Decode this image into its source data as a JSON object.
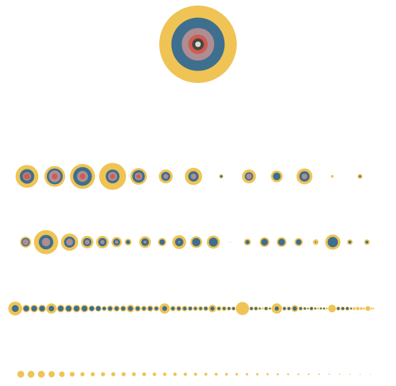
{
  "chart_data": {
    "type": "nested-circles",
    "title": "",
    "palette": {
      "level1": "#EFC455",
      "level2": "#3E6F8E",
      "level3": "#AE8D93",
      "level4": "#CF5C50",
      "level5": "#4B453F",
      "level6": "#D6DECE"
    },
    "levels": [
      {
        "name": "level-1",
        "nodes": [
          {
            "values": [
              56.0,
              38.5,
              23.5,
              14.0,
              8.5,
              4.0
            ]
          }
        ]
      },
      {
        "name": "level-2",
        "nodes": [
          {
            "values": [
              16.5,
              10.5,
              6.0,
              4.5
            ]
          },
          {
            "values": [
              15.0,
              11.5,
              8.5,
              4.0
            ]
          },
          {
            "values": [
              18.0,
              13.5,
              8.0,
              4.0
            ]
          },
          {
            "values": [
              19.5,
              10.0,
              6.5,
              3.5
            ]
          },
          {
            "values": [
              12.0,
              9.0,
              5.5,
              3.0
            ]
          },
          {
            "values": [
              10.0,
              6.5,
              3.5
            ]
          },
          {
            "values": [
              12.5,
              7.5,
              4.0
            ]
          },
          {
            "values": [
              3.0,
              1.8
            ]
          },
          {
            "values": [
              10.0,
              6.0,
              4.0
            ]
          },
          {
            "values": [
              8.5,
              5.5
            ]
          },
          {
            "values": [
              11.5,
              7.5,
              4.0
            ]
          },
          {
            "values": [
              2.0
            ]
          },
          {
            "values": [
              3.5,
              1.5
            ]
          }
        ]
      },
      {
        "name": "level-3",
        "nodes": [
          {
            "values": [
              8.0,
              6.0,
              4.5
            ]
          },
          {
            "values": [
              17.5,
              10.5,
              6.0
            ]
          },
          {
            "values": [
              12.5,
              8.0,
              5.0
            ]
          },
          {
            "values": [
              9.0,
              6.0,
              3.5
            ]
          },
          {
            "values": [
              9.0,
              6.0,
              3.0
            ]
          },
          {
            "values": [
              7.5,
              5.0,
              2.5
            ]
          },
          {
            "values": [
              5.0,
              3.0
            ]
          },
          {
            "values": [
              8.5,
              5.5,
              2.0
            ]
          },
          {
            "values": [
              6.0,
              4.0
            ]
          },
          {
            "values": [
              10.0,
              6.0,
              1.5
            ]
          },
          {
            "values": [
              8.5,
              6.0
            ]
          },
          {
            "values": [
              9.5,
              6.5
            ]
          },
          {
            "values": [
              0.6
            ]
          },
          {
            "values": [
              5.0,
              3.0
            ]
          },
          {
            "values": [
              7.0,
              5.0
            ]
          },
          {
            "values": [
              7.0,
              5.0
            ]
          },
          {
            "values": [
              6.0,
              4.0
            ]
          },
          {
            "values": [
              4.0,
              1.0
            ]
          },
          {
            "values": [
              11.0,
              7.5
            ]
          },
          {
            "values": [
              4.0,
              2.0
            ]
          },
          {
            "values": [
              4.0,
              2.0
            ]
          }
        ]
      },
      {
        "name": "level-4",
        "nodes": [
          {
            "values": [
              10.0,
              5.0
            ]
          },
          {
            "values": [
              5.5,
              4.0
            ]
          },
          {
            "values": [
              5.5,
              4.0
            ]
          },
          {
            "values": [
              5.5,
              4.0
            ]
          },
          {
            "values": [
              7.5,
              4.0
            ]
          },
          {
            "values": [
              5.5,
              4.0
            ]
          },
          {
            "values": [
              5.5,
              4.0
            ]
          },
          {
            "values": [
              5.5,
              4.0
            ]
          },
          {
            "values": [
              5.5,
              4.0
            ]
          },
          {
            "values": [
              4.5,
              3.5
            ]
          },
          {
            "values": [
              4.5,
              3.5
            ]
          },
          {
            "values": [
              3.5,
              2.5
            ]
          },
          {
            "values": [
              4.5,
              3.0
            ]
          },
          {
            "values": [
              4.5,
              3.0
            ]
          },
          {
            "values": [
              4.5,
              3.0
            ]
          },
          {
            "values": [
              5.5,
              3.5
            ]
          },
          {
            "values": [
              4.5,
              3.0
            ]
          },
          {
            "values": [
              4.0,
              2.5
            ]
          },
          {
            "values": [
              4.5,
              3.0
            ]
          },
          {
            "values": [
              4.0,
              2.5
            ]
          },
          {
            "values": [
              7.5,
              3.5
            ]
          },
          {
            "values": [
              4.0,
              2.5
            ]
          },
          {
            "values": [
              4.0,
              2.5
            ]
          },
          {
            "values": [
              4.0,
              2.5
            ]
          },
          {
            "values": [
              3.5,
              2.5
            ]
          },
          {
            "values": [
              3.5,
              2.0
            ]
          },
          {
            "values": [
              3.5,
              2.0
            ]
          },
          {
            "values": [
              3.5,
              2.5
            ]
          },
          {
            "values": [
              5.5,
              3.0
            ]
          },
          {
            "values": [
              3.5,
              2.0
            ]
          },
          {
            "values": [
              3.5,
              2.0
            ]
          },
          {
            "values": [
              3.0,
              2.0
            ]
          },
          {
            "values": [
              3.0,
              2.0
            ]
          },
          {
            "values": [
              9.5
            ]
          },
          {
            "values": [
              3.0,
              2.0
            ]
          },
          {
            "values": [
              3.0,
              2.0
            ]
          },
          {
            "values": [
              2.0,
              1.2
            ]
          },
          {
            "values": [
              1.5
            ]
          },
          {
            "values": [
              3.0,
              2.0
            ]
          },
          {
            "values": [
              2.0,
              1.2
            ]
          },
          {
            "values": [
              7.5,
              3.0
            ]
          },
          {
            "values": [
              3.0,
              2.0
            ]
          },
          {
            "values": [
              3.0,
              2.0
            ]
          },
          {
            "values": [
              5.0,
              3.0
            ]
          },
          {
            "values": [
              3.0,
              2.0
            ]
          },
          {
            "values": [
              2.5,
              1.5
            ]
          },
          {
            "values": [
              1.5,
              1.0
            ]
          },
          {
            "values": [
              3.0,
              2.0
            ]
          },
          {
            "values": [
              2.0,
              1.2
            ]
          },
          {
            "values": [
              1.5
            ]
          },
          {
            "values": [
              2.0,
              1.2
            ]
          },
          {
            "values": [
              2.0,
              1.2
            ]
          },
          {
            "values": [
              1.5
            ]
          },
          {
            "values": [
              5.5
            ]
          },
          {
            "values": [
              3.0,
              2.0
            ]
          },
          {
            "values": [
              3.0,
              2.0
            ]
          },
          {
            "values": [
              3.0,
              2.0
            ]
          },
          {
            "values": [
              2.0,
              1.2
            ]
          },
          {
            "values": [
              2.0
            ]
          },
          {
            "values": [
              2.5
            ]
          },
          {
            "values": [
              2.0
            ]
          },
          {
            "values": [
              1.5
            ]
          },
          {
            "values": [
              3.5
            ]
          },
          {
            "values": [
              1.5
            ]
          },
          {
            "values": [
              1.0
            ]
          }
        ]
      },
      {
        "name": "level-5",
        "nodes": [
          {
            "values": [
              5.0
            ]
          },
          {
            "values": [
              5.0
            ]
          },
          {
            "values": [
              5.0
            ]
          },
          {
            "values": [
              4.5
            ]
          },
          {
            "values": [
              4.0
            ]
          },
          {
            "values": [
              3.5
            ]
          },
          {
            "values": [
              3.0
            ]
          },
          {
            "values": [
              3.0
            ]
          },
          {
            "values": [
              3.0
            ]
          },
          {
            "values": [
              3.0
            ]
          },
          {
            "values": [
              3.0
            ]
          },
          {
            "values": [
              2.8
            ]
          },
          {
            "values": [
              2.8
            ]
          },
          {
            "values": [
              2.6
            ]
          },
          {
            "values": [
              2.5
            ]
          },
          {
            "values": [
              2.5
            ]
          },
          {
            "values": [
              2.4
            ]
          },
          {
            "values": [
              2.3
            ]
          },
          {
            "values": [
              2.2
            ]
          },
          {
            "values": [
              2.1
            ]
          },
          {
            "values": [
              2.0
            ]
          },
          {
            "values": [
              1.9
            ]
          },
          {
            "values": [
              1.8
            ]
          },
          {
            "values": [
              1.7
            ]
          },
          {
            "values": [
              1.6
            ]
          },
          {
            "values": [
              1.5
            ]
          },
          {
            "values": [
              1.4
            ]
          },
          {
            "values": [
              1.3
            ]
          },
          {
            "values": [
              1.2
            ]
          },
          {
            "values": [
              1.1
            ]
          },
          {
            "values": [
              1.0
            ]
          },
          {
            "values": [
              0.9
            ]
          },
          {
            "values": [
              0.8
            ]
          },
          {
            "values": [
              0.7
            ]
          },
          {
            "values": [
              0.6
            ]
          }
        ]
      }
    ]
  }
}
